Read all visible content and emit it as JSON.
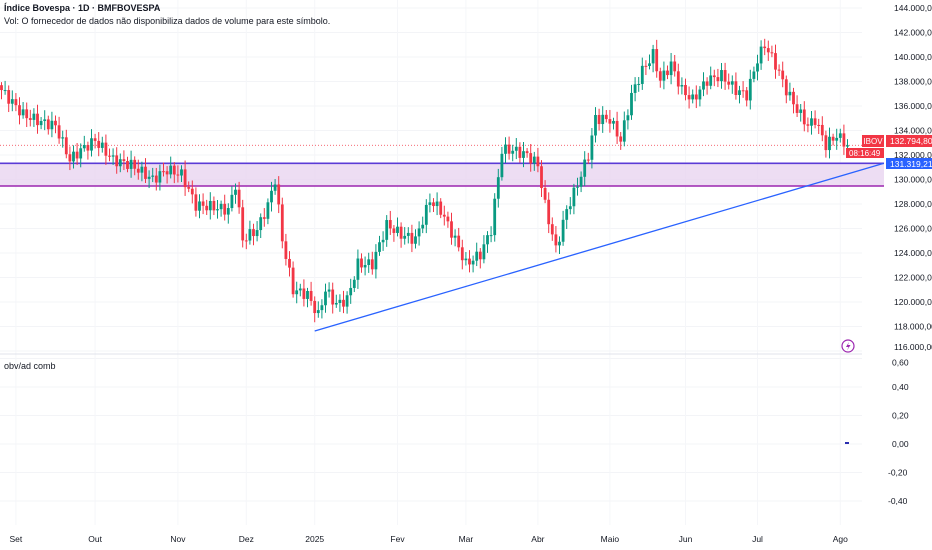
{
  "header": {
    "title": "Índice Bovespa · 1D · BMFBOVESPA",
    "volume_note": "Vol: O fornecedor de dados não disponibiliza dados de volume para este símbolo."
  },
  "indicator": {
    "name": "obv/ad comb",
    "ticks": [
      "0,60",
      "0,40",
      "0,20",
      "0,00",
      "-0,20",
      "-0,40"
    ],
    "tick_values": [
      0.6,
      0.4,
      0.2,
      0,
      -0.2,
      -0.4
    ],
    "last_value": 0
  },
  "price_axis": {
    "ticks": [
      "144.000,00",
      "142.000,00",
      "140.000,00",
      "138.000,00",
      "136.000,00",
      "134.000,00",
      "132.000,00",
      "130.000,00",
      "128.000,00",
      "126.000,00",
      "124.000,00",
      "122.000,00",
      "120.000,00",
      "118.000,00",
      "116.000,00"
    ],
    "symbol_label": "IBOV",
    "last_price": "132.794,80",
    "countdown": "08:16:49",
    "line_price": "131.319,21"
  },
  "time_axis": {
    "labels": [
      "Set",
      "Out",
      "Nov",
      "Dez",
      "2025",
      "Fev",
      "Mar",
      "Abr",
      "Maio",
      "Jun",
      "Jul",
      "Ago"
    ],
    "label_days": [
      4,
      26,
      49,
      68,
      87,
      110,
      129,
      149,
      169,
      190,
      210,
      233
    ]
  },
  "colors": {
    "up": "#089981",
    "down": "#f23645",
    "trend": "#2962ff",
    "zone": "#9c27b0",
    "zone_fill": "#e8d5f0"
  },
  "chart_data": {
    "type": "candlestick",
    "title": "Índice Bovespa · 1D · BMFBOVESPA",
    "ylim": [
      116000,
      144000
    ],
    "keypoints": [
      [
        0,
        137300
      ],
      [
        6,
        135300
      ],
      [
        11,
        134700
      ],
      [
        15,
        134400
      ],
      [
        19,
        131600
      ],
      [
        22,
        132400
      ],
      [
        26,
        133200
      ],
      [
        31,
        131600
      ],
      [
        36,
        131200
      ],
      [
        42,
        130000
      ],
      [
        46,
        130800
      ],
      [
        50,
        130400
      ],
      [
        54,
        127900
      ],
      [
        58,
        127800
      ],
      [
        63,
        127500
      ],
      [
        65,
        129600
      ],
      [
        67,
        125100
      ],
      [
        71,
        125900
      ],
      [
        74,
        127900
      ],
      [
        76,
        130000
      ],
      [
        78,
        125100
      ],
      [
        81,
        121000
      ],
      [
        85,
        120600
      ],
      [
        88,
        118900
      ],
      [
        90,
        121000
      ],
      [
        93,
        119800
      ],
      [
        96,
        120200
      ],
      [
        99,
        123100
      ],
      [
        103,
        123100
      ],
      [
        107,
        126300
      ],
      [
        111,
        125500
      ],
      [
        115,
        125100
      ],
      [
        119,
        128300
      ],
      [
        122,
        127500
      ],
      [
        126,
        125100
      ],
      [
        129,
        123100
      ],
      [
        133,
        123900
      ],
      [
        136,
        125900
      ],
      [
        139,
        132400
      ],
      [
        142,
        132400
      ],
      [
        146,
        132000
      ],
      [
        149,
        131200
      ],
      [
        151,
        127900
      ],
      [
        154,
        124300
      ],
      [
        157,
        127500
      ],
      [
        160,
        129600
      ],
      [
        163,
        132000
      ],
      [
        165,
        135000
      ],
      [
        169,
        134900
      ],
      [
        172,
        133200
      ],
      [
        175,
        136900
      ],
      [
        178,
        138900
      ],
      [
        181,
        140200
      ],
      [
        183,
        138100
      ],
      [
        186,
        139400
      ],
      [
        189,
        137300
      ],
      [
        192,
        136500
      ],
      [
        196,
        138100
      ],
      [
        200,
        138500
      ],
      [
        204,
        137300
      ],
      [
        207,
        136900
      ],
      [
        210,
        139800
      ],
      [
        212,
        141000
      ],
      [
        215,
        139400
      ],
      [
        218,
        137300
      ],
      [
        221,
        135700
      ],
      [
        224,
        134400
      ],
      [
        226,
        134900
      ],
      [
        229,
        132800
      ],
      [
        232,
        133600
      ],
      [
        235,
        132795
      ]
    ],
    "horizontal_lines": [
      131319.21,
      129470
    ],
    "trendline": [
      [
        87,
        117630
      ],
      [
        245,
        131319
      ]
    ],
    "last_close": 132794.8
  }
}
